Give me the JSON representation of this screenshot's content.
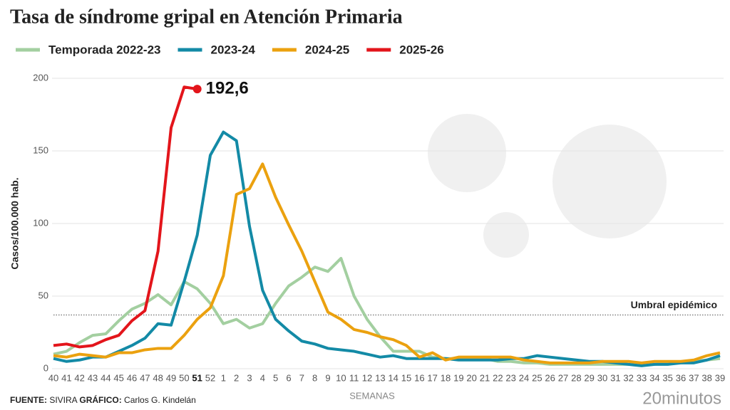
{
  "chart_data": {
    "type": "line",
    "title": "Tasa de síndrome gripal en Atención Primaria",
    "y_label": "Casos/100.000 hab.",
    "x_label": "SEMANAS",
    "categories": [
      "40",
      "41",
      "42",
      "43",
      "44",
      "45",
      "46",
      "47",
      "48",
      "49",
      "50",
      "51",
      "52",
      "1",
      "2",
      "3",
      "4",
      "5",
      "6",
      "7",
      "8",
      "9",
      "10",
      "11",
      "12",
      "13",
      "14",
      "15",
      "16",
      "17",
      "18",
      "19",
      "20",
      "21",
      "22",
      "23",
      "24",
      "25",
      "26",
      "27",
      "28",
      "29",
      "30",
      "31",
      "32",
      "33",
      "34",
      "35",
      "36",
      "37",
      "38",
      "39"
    ],
    "ylim": [
      0,
      200
    ],
    "yticks": [
      0,
      50,
      100,
      150,
      200
    ],
    "grid": true,
    "threshold": {
      "label": "Umbral epidémico",
      "value": 37
    },
    "series": [
      {
        "name": "Temporada 2022-23",
        "color": "#a3cfa0",
        "values": [
          10,
          12,
          18,
          23,
          24,
          33,
          41,
          45,
          51,
          44,
          60,
          55,
          45,
          31,
          34,
          28,
          31,
          45,
          57,
          63,
          70,
          67,
          76,
          50,
          34,
          22,
          12,
          12,
          12,
          8,
          7,
          7,
          7,
          7,
          5,
          5,
          4,
          4,
          3,
          3,
          3,
          3,
          3,
          3,
          3,
          3,
          3,
          4,
          4,
          5,
          6,
          7
        ]
      },
      {
        "name": "2023-24",
        "color": "#138aa6",
        "values": [
          7,
          5,
          6,
          8,
          8,
          12,
          16,
          21,
          31,
          30,
          60,
          92,
          147,
          163,
          157,
          98,
          54,
          34,
          26,
          19,
          17,
          14,
          13,
          12,
          10,
          8,
          9,
          7,
          7,
          7,
          7,
          6,
          6,
          6,
          6,
          7,
          7,
          9,
          8,
          7,
          6,
          5,
          5,
          4,
          3,
          2,
          3,
          3,
          4,
          4,
          6,
          9
        ]
      },
      {
        "name": "2024-25",
        "color": "#eba10f",
        "values": [
          9,
          8,
          10,
          9,
          8,
          11,
          11,
          13,
          14,
          14,
          23,
          34,
          42,
          64,
          120,
          124,
          141,
          118,
          99,
          81,
          60,
          39,
          34,
          27,
          25,
          22,
          20,
          16,
          8,
          11,
          6,
          8,
          8,
          8,
          8,
          8,
          6,
          5,
          4,
          4,
          4,
          4,
          5,
          5,
          5,
          4,
          5,
          5,
          5,
          6,
          9,
          11
        ]
      },
      {
        "name": "2025-26",
        "color": "#e3151b",
        "values": [
          16,
          17,
          15,
          16,
          20,
          23,
          33,
          40,
          81,
          166,
          194,
          192.6,
          null,
          null,
          null,
          null,
          null,
          null,
          null,
          null,
          null,
          null,
          null,
          null,
          null,
          null,
          null,
          null,
          null,
          null,
          null,
          null,
          null,
          null,
          null,
          null,
          null,
          null,
          null,
          null,
          null,
          null,
          null,
          null,
          null,
          null,
          null,
          null,
          null,
          null,
          null,
          null
        ],
        "value_labels": [
          null,
          null,
          null,
          null,
          null,
          null,
          null,
          null,
          null,
          null,
          null,
          "192,6",
          null,
          null,
          null,
          null,
          null,
          null,
          null,
          null,
          null,
          null,
          null,
          null,
          null,
          null,
          null,
          null,
          null,
          null,
          null,
          null,
          null,
          null,
          null,
          null,
          null,
          null,
          null,
          null,
          null,
          null,
          null,
          null,
          null,
          null,
          null,
          null,
          null,
          null,
          null,
          null
        ]
      }
    ]
  },
  "footer": {
    "source_label": "FUENTE:",
    "source": "SIVIRA",
    "credit_label": "GRÁFICO:",
    "credit": "Carlos G. Kindelán",
    "logo": "20minutos"
  }
}
